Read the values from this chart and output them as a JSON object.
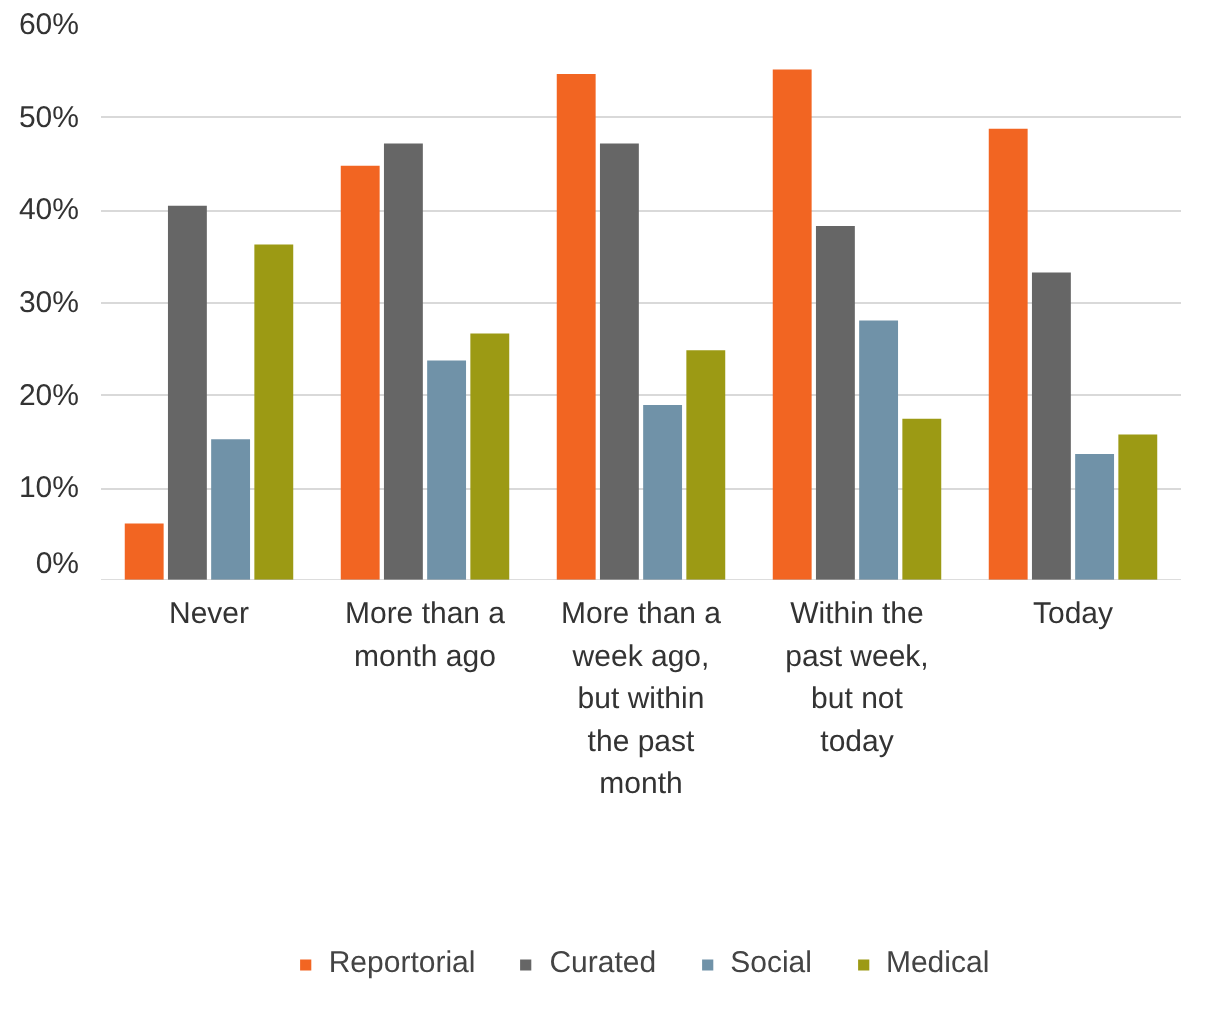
{
  "chart_data": {
    "type": "bar",
    "categories": [
      "Never",
      "More than a\nmonth ago",
      "More than a\nweek ago,\nbut within\nthe past\nmonth",
      "Within the\npast week,\nbut not\ntoday",
      "Today"
    ],
    "series": [
      {
        "name": "Reportorial",
        "color": "#f26522",
        "values": [
          6.2,
          44.8,
          54.7,
          55.2,
          48.8
        ]
      },
      {
        "name": "Curated",
        "color": "#666666",
        "values": [
          40.5,
          47.2,
          47.2,
          38.3,
          33.3
        ]
      },
      {
        "name": "Social",
        "color": "#7092a8",
        "values": [
          15.3,
          23.8,
          19.0,
          28.1,
          13.7
        ]
      },
      {
        "name": "Medical",
        "color": "#9c9a14",
        "values": [
          36.3,
          26.7,
          24.9,
          17.5,
          15.8
        ]
      }
    ],
    "ylim": [
      0,
      60
    ],
    "yticks": [
      {
        "value": 0,
        "label": "0%"
      },
      {
        "value": 10,
        "label": "10%"
      },
      {
        "value": 20,
        "label": "20%"
      },
      {
        "value": 30,
        "label": "30%"
      },
      {
        "value": 40,
        "label": "40%"
      },
      {
        "value": 50,
        "label": "50%"
      },
      {
        "value": 60,
        "label": "60%"
      }
    ],
    "grid": "y",
    "legend": "bottom"
  }
}
